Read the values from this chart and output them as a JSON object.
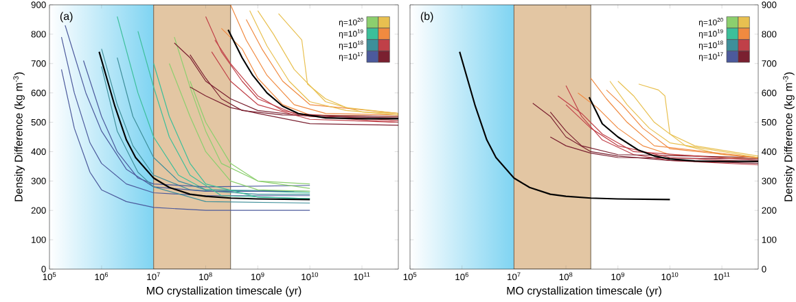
{
  "chart_data": [
    {
      "type": "line",
      "xlabel": "MO crystallization timescale (yr)",
      "ylabel": "Density Difference (kg m$^{-3}$)",
      "annotations": [
        "(a)"
      ],
      "log": "x",
      "grid": false,
      "legend": "top right",
      "marker": "none",
      "line_style": "solid",
      "xlim": [
        100000,
        500000000000
      ],
      "ylim": [
        0,
        900
      ],
      "xticks": [
        {
          "value": 100000,
          "label": "10$^{5}$"
        },
        {
          "value": 1000000,
          "label": "10$^{6}$"
        },
        {
          "value": 10000000,
          "label": "10$^{7}$"
        },
        {
          "value": 100000000,
          "label": "10$^{8}$"
        },
        {
          "value": 1000000000,
          "label": "10$^{9}$"
        },
        {
          "value": 10000000000,
          "label": "10$^{10}$"
        },
        {
          "value": 100000000000,
          "label": "10$^{11}$"
        }
      ],
      "yticks": [
        0,
        100,
        200,
        300,
        400,
        500,
        600,
        700,
        800,
        900
      ],
      "bands": [
        {
          "axis": "x",
          "from": 100000,
          "to": 10000000,
          "color": "#80d4f2"
        },
        {
          "axis": "x",
          "from": 10000000,
          "to": 300000000,
          "color": "#e3c6a3"
        }
      ],
      "series": [
        {
          "name": "η=10$^{20}$",
          "color": "#8ccf6e",
          "x": [
            25000000,
            50000000,
            100000000,
            200000000,
            1000000000,
            10000000000
          ],
          "values": [
            790,
            620,
            470,
            360,
            300,
            290
          ]
        },
        {
          "name": "η=10$^{19}$",
          "color": "#3cbf9a",
          "x": [
            2000000,
            5000000,
            10000000,
            30000000,
            100000000,
            10000000000
          ],
          "values": [
            860,
            600,
            450,
            320,
            270,
            260
          ]
        },
        {
          "name": "η=10$^{18}$",
          "color": "#3e8f9a",
          "x": [
            1000000,
            2000000,
            4000000,
            10000000,
            50000000,
            1000000000,
            10000000000
          ],
          "values": [
            750,
            560,
            420,
            320,
            270,
            255,
            255
          ]
        },
        {
          "name": "η=10$^{17}$",
          "color": "#4c5a9c",
          "x": [
            170000,
            300000,
            600000,
            1000000,
            3000000,
            10000000,
            100000000,
            10000000000
          ],
          "values": [
            790,
            600,
            430,
            360,
            290,
            260,
            250,
            250
          ]
        },
        {
          "color": "#e8c050",
          "x": [
            1000000000,
            2000000000,
            5000000000,
            20000000000,
            100000000000,
            500000000000
          ],
          "values": [
            880,
            800,
            680,
            570,
            535,
            530
          ]
        },
        {
          "color": "#f08a40",
          "x": [
            200000000,
            500000000,
            1000000000,
            3000000000,
            10000000000,
            500000000000
          ],
          "values": [
            820,
            750,
            650,
            560,
            525,
            520
          ]
        },
        {
          "color": "#c04048",
          "x": [
            100000000,
            200000000,
            500000000,
            1000000000,
            5000000000,
            500000000000
          ],
          "values": [
            860,
            740,
            640,
            580,
            530,
            505
          ]
        },
        {
          "color": "#7a2030",
          "x": [
            25000000,
            50000000,
            100000000,
            300000000,
            1000000000,
            10000000000,
            500000000000
          ],
          "values": [
            770,
            720,
            640,
            580,
            540,
            520,
            515
          ]
        },
        {
          "color": "#4c5a9c",
          "x": [
            170000,
            300000,
            600000,
            1000000,
            3000000,
            10000000,
            100000000,
            10000000000
          ],
          "values": [
            680,
            480,
            330,
            270,
            230,
            210,
            200,
            200
          ]
        },
        {
          "color": "#4c5a9c",
          "x": [
            450000,
            1000000,
            2000000,
            5000000,
            10000000,
            100000000,
            10000000000
          ],
          "values": [
            710,
            520,
            400,
            310,
            290,
            280,
            285
          ]
        },
        {
          "color": "#4c5a9c",
          "x": [
            200000,
            500000,
            1000000,
            3000000,
            10000000,
            100000000,
            5000000000
          ],
          "values": [
            830,
            600,
            470,
            340,
            280,
            265,
            265
          ]
        },
        {
          "color": "#3e8f9a",
          "x": [
            2000000,
            4000000,
            10000000,
            30000000,
            100000000,
            10000000000
          ],
          "values": [
            720,
            520,
            380,
            300,
            270,
            265
          ]
        },
        {
          "color": "#3e8f9a",
          "x": [
            1000000,
            2000000,
            5000000,
            10000000,
            100000000,
            10000000000
          ],
          "values": [
            690,
            470,
            330,
            280,
            230,
            225
          ]
        },
        {
          "color": "#3cbf9a",
          "x": [
            5000000,
            10000000,
            20000000,
            50000000,
            200000000,
            10000000000
          ],
          "values": [
            810,
            620,
            450,
            320,
            250,
            240
          ]
        },
        {
          "color": "#3cbf9a",
          "x": [
            10000000,
            20000000,
            50000000,
            100000000,
            1000000000,
            10000000000
          ],
          "values": [
            700,
            520,
            360,
            290,
            245,
            240
          ]
        },
        {
          "color": "#8ccf6e",
          "x": [
            50000000,
            100000000,
            300000000,
            1000000000,
            10000000000
          ],
          "values": [
            640,
            500,
            360,
            300,
            275
          ]
        },
        {
          "color": "#8ccf6e",
          "x": [
            20000000,
            50000000,
            100000000,
            300000000,
            1000000000,
            10000000000
          ],
          "values": [
            700,
            520,
            400,
            300,
            270,
            265
          ]
        },
        {
          "color": "#7a2030",
          "x": [
            50000000,
            100000000,
            200000000,
            500000000,
            3000000000,
            500000000000
          ],
          "values": [
            730,
            650,
            580,
            540,
            525,
            520
          ]
        },
        {
          "color": "#7a2030",
          "x": [
            50000000,
            100000000,
            300000000,
            1000000000,
            10000000000,
            500000000000
          ],
          "values": [
            620,
            590,
            550,
            530,
            495,
            490
          ]
        },
        {
          "color": "#c04048",
          "x": [
            150000000,
            300000000,
            1000000000,
            3000000000,
            10000000000,
            500000000000
          ],
          "values": [
            780,
            700,
            590,
            540,
            520,
            500
          ]
        },
        {
          "color": "#c04048",
          "x": [
            130000000,
            300000000,
            1000000000,
            10000000000,
            500000000000
          ],
          "values": [
            740,
            640,
            560,
            510,
            500
          ]
        },
        {
          "color": "#f08a40",
          "x": [
            300000000,
            600000000,
            1500000000,
            5000000000,
            20000000000,
            500000000000
          ],
          "values": [
            900,
            780,
            660,
            560,
            530,
            525
          ]
        },
        {
          "color": "#f08a40",
          "x": [
            600000000,
            1200000000,
            3000000000,
            10000000000,
            500000000000
          ],
          "values": [
            850,
            750,
            640,
            560,
            530
          ]
        },
        {
          "color": "#e8c050",
          "x": [
            2500000000,
            7000000000,
            9000000000,
            20000000000,
            50000000000,
            500000000000
          ],
          "values": [
            870,
            780,
            630,
            580,
            550,
            530
          ]
        },
        {
          "color": "#e8c050",
          "x": [
            700000000,
            1500000000,
            4000000000,
            10000000000,
            50000000000,
            500000000000
          ],
          "values": [
            880,
            760,
            640,
            570,
            540,
            525
          ]
        },
        {
          "color": "#000000",
          "x": [
            900000,
            1800000,
            3000000,
            4500000,
            10000000,
            20000000,
            50000000,
            100000000,
            300000000,
            1000000000,
            10000000000
          ],
          "values": [
            740,
            555,
            440,
            380,
            310,
            278,
            255,
            248,
            242,
            239,
            237
          ]
        },
        {
          "color": "#000000",
          "x": [
            270000000,
            500000000,
            800000000,
            1500000000,
            3000000000,
            6000000000,
            20000000000,
            100000000000,
            500000000000
          ],
          "values": [
            815,
            720,
            660,
            600,
            555,
            530,
            515,
            512,
            512
          ]
        }
      ]
    },
    {
      "type": "line",
      "xlabel": "MO crystallization timescale (yr)",
      "ylabel": "Density Difference (kg m$^{-3}$)",
      "annotations": [
        "(b)"
      ],
      "log": "x",
      "grid": false,
      "legend": "top right",
      "marker": "none",
      "line_style": "solid",
      "xlim": [
        100000,
        500000000000
      ],
      "ylim": [
        0,
        900
      ],
      "xticks": [
        {
          "value": 100000,
          "label": "10$^{5}$"
        },
        {
          "value": 1000000,
          "label": "10$^{6}$"
        },
        {
          "value": 10000000,
          "label": "10$^{7}$"
        },
        {
          "value": 100000000,
          "label": "10$^{8}$"
        },
        {
          "value": 1000000000,
          "label": "10$^{9}$"
        },
        {
          "value": 10000000000,
          "label": "10$^{10}$"
        },
        {
          "value": 100000000000,
          "label": "10$^{11}$"
        }
      ],
      "yticks": [
        0,
        100,
        200,
        300,
        400,
        500,
        600,
        700,
        800,
        900
      ],
      "bands": [
        {
          "axis": "x",
          "from": 100000,
          "to": 10000000,
          "color": "#80d4f2"
        },
        {
          "axis": "x",
          "from": 10000000,
          "to": 300000000,
          "color": "#e3c6a3"
        }
      ],
      "series": [
        {
          "name": "η=10$^{20}$",
          "color": "#e8c050",
          "x": [
            1000000000,
            2000000000,
            5000000000,
            20000000000,
            100000000000,
            500000000000
          ],
          "values": [
            640,
            590,
            500,
            420,
            390,
            380
          ]
        },
        {
          "name": "η=10$^{19}$",
          "color": "#f08a40",
          "x": [
            170000000,
            400000000,
            1000000000,
            3000000000,
            10000000000,
            500000000000
          ],
          "values": [
            600,
            550,
            480,
            420,
            390,
            375
          ]
        },
        {
          "name": "η=10$^{18}$",
          "color": "#c04048",
          "x": [
            100000000,
            200000000,
            500000000,
            2000000000,
            10000000000,
            500000000000
          ],
          "values": [
            625,
            520,
            440,
            390,
            370,
            355
          ]
        },
        {
          "name": "η=10$^{17}$",
          "color": "#7a2030",
          "x": [
            23000000,
            50000000,
            100000000,
            300000000,
            1000000000,
            10000000000,
            500000000000
          ],
          "values": [
            565,
            520,
            450,
            400,
            385,
            370,
            360
          ]
        },
        {
          "color": "#7a2030",
          "x": [
            50000000,
            100000000,
            300000000,
            1000000000,
            500000000000
          ],
          "values": [
            450,
            420,
            395,
            380,
            375
          ]
        },
        {
          "color": "#7a2030",
          "x": [
            50000000,
            100000000,
            200000000,
            1000000000,
            500000000000
          ],
          "values": [
            535,
            470,
            420,
            390,
            380
          ]
        },
        {
          "color": "#c04048",
          "x": [
            70000000,
            200000000,
            500000000,
            2000000000,
            500000000000
          ],
          "values": [
            590,
            530,
            460,
            400,
            370
          ]
        },
        {
          "color": "#c04048",
          "x": [
            100000000,
            300000000,
            1000000000,
            10000000000,
            500000000000
          ],
          "values": [
            560,
            480,
            420,
            380,
            365
          ]
        },
        {
          "color": "#f08a40",
          "x": [
            300000000,
            600000000,
            1500000000,
            5000000000,
            500000000000
          ],
          "values": [
            650,
            580,
            500,
            420,
            380
          ]
        },
        {
          "color": "#f08a40",
          "x": [
            600000000,
            1200000000,
            3000000000,
            10000000000,
            500000000000
          ],
          "values": [
            610,
            560,
            480,
            410,
            378
          ]
        },
        {
          "color": "#e8c050",
          "x": [
            2500000000,
            6000000000,
            8000000000,
            10000000000,
            30000000000,
            500000000000
          ],
          "values": [
            630,
            610,
            590,
            460,
            420,
            385
          ]
        },
        {
          "color": "#e8c050",
          "x": [
            700000000,
            1500000000,
            4000000000,
            10000000000,
            500000000000
          ],
          "values": [
            640,
            560,
            480,
            430,
            380
          ]
        },
        {
          "color": "#000000",
          "x": [
            900000,
            1800000,
            3000000,
            4500000,
            10000000,
            20000000,
            50000000,
            100000000,
            300000000,
            1000000000,
            10000000000
          ],
          "values": [
            740,
            555,
            440,
            380,
            310,
            278,
            255,
            248,
            242,
            239,
            237
          ]
        },
        {
          "color": "#000000",
          "x": [
            280000000,
            500000000,
            1000000000,
            2500000000,
            5000000000,
            10000000000,
            30000000000,
            100000000000,
            500000000000
          ],
          "values": [
            585,
            495,
            450,
            405,
            385,
            375,
            368,
            367,
            367
          ]
        }
      ]
    }
  ]
}
